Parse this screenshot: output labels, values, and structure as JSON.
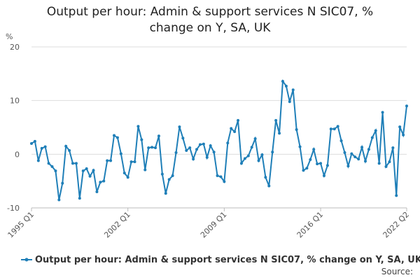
{
  "chart_data": {
    "type": "line",
    "title": "Output per hour: Admin & support services N SIC07, % change on Y, SA, UK",
    "y_label": "%",
    "source": "Source:",
    "categories": [
      "1995 Q1",
      null,
      null,
      null,
      null,
      null,
      null,
      null,
      null,
      null,
      null,
      null,
      null,
      null,
      null,
      null,
      null,
      null,
      null,
      null,
      null,
      null,
      null,
      null,
      null,
      null,
      null,
      null,
      "2002 Q1",
      null,
      null,
      null,
      null,
      null,
      null,
      null,
      null,
      null,
      null,
      null,
      null,
      null,
      null,
      null,
      null,
      null,
      null,
      null,
      null,
      null,
      null,
      null,
      null,
      null,
      null,
      null,
      "2009 Q1",
      null,
      null,
      null,
      null,
      null,
      null,
      null,
      null,
      null,
      null,
      null,
      null,
      null,
      null,
      null,
      null,
      null,
      null,
      null,
      null,
      null,
      null,
      null,
      null,
      null,
      null,
      null,
      "2016 Q1",
      null,
      null,
      null,
      null,
      null,
      null,
      null,
      null,
      null,
      null,
      null,
      null,
      null,
      null,
      null,
      null,
      null,
      null,
      null,
      null,
      null,
      null,
      null,
      null,
      "2022 Q2"
    ],
    "series": [
      {
        "name": "Output per hour: Admin & support services N SIC07, % change on Y, SA, UK",
        "color": "#1f7fb8",
        "values": [
          2.0,
          2.4,
          -1.2,
          1.1,
          1.4,
          -1.7,
          -2.3,
          -3.1,
          -8.5,
          -5.4,
          1.5,
          0.7,
          -1.7,
          -1.7,
          -8.2,
          -3.1,
          -2.7,
          -4.1,
          -3.0,
          -7.0,
          -5.2,
          -5.0,
          -1.2,
          -1.2,
          3.5,
          3.1,
          0.1,
          -3.5,
          -4.3,
          -1.4,
          -1.4,
          5.2,
          2.7,
          -2.9,
          1.2,
          1.3,
          1.2,
          3.4,
          -3.7,
          -7.3,
          -4.7,
          -4.0,
          0.3,
          5.1,
          3.0,
          0.7,
          1.2,
          -0.9,
          0.9,
          1.8,
          1.9,
          -0.6,
          1.6,
          0.4,
          -4.0,
          -4.2,
          -5.1,
          2.1,
          4.8,
          4.2,
          6.3,
          -1.7,
          -0.8,
          -0.3,
          1.3,
          2.9,
          -1.2,
          -0.1,
          -4.3,
          -5.9,
          0.4,
          6.3,
          3.9,
          13.6,
          12.7,
          9.8,
          12.0,
          4.6,
          1.4,
          -3.0,
          -2.6,
          -1.0,
          0.9,
          -1.8,
          -1.7,
          -4.0,
          -2.1,
          4.7,
          4.7,
          5.2,
          2.5,
          0.3,
          -2.2,
          0.1,
          -0.5,
          -0.9,
          1.3,
          -1.3,
          0.9,
          3.1,
          4.4,
          -1.7,
          7.8,
          -2.3,
          -1.4,
          1.2,
          -7.7,
          5.1,
          3.6,
          9.0
        ]
      }
    ],
    "ylim": [
      -10,
      20
    ],
    "yticks": [
      -10,
      0,
      10,
      20
    ],
    "grid": true
  }
}
